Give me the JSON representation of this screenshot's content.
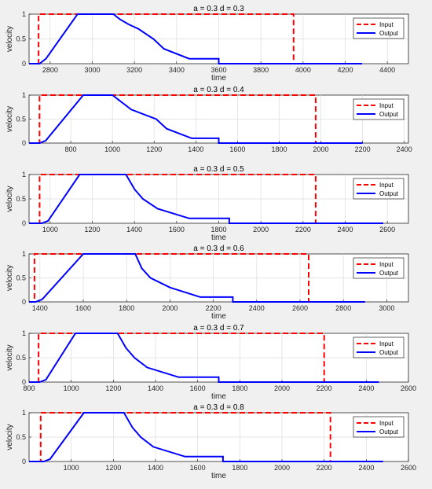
{
  "colors": {
    "input": "#ff0000",
    "output": "#0000ff",
    "background": "#f0f0f0",
    "axes": "#ffffff",
    "grid": "#dcdcdc"
  },
  "chart_data": [
    {
      "type": "line",
      "title": "a = 0.3  d = 0.3",
      "xlabel": "time",
      "ylabel": "velocity",
      "xlim": [
        2700,
        4500
      ],
      "ylim": [
        0,
        1
      ],
      "xticks": [
        2800,
        3000,
        3200,
        3400,
        3600,
        3800,
        4000,
        4200,
        4400
      ],
      "yticks": [
        0,
        0.5,
        1
      ],
      "grid": true,
      "legend_position": "top-right",
      "series": [
        {
          "name": "Input",
          "style": "dashed",
          "x": [
            2700,
            2745,
            2745,
            3955,
            3955,
            4280
          ],
          "y": [
            0,
            0,
            1,
            1,
            0,
            0
          ]
        },
        {
          "name": "Output",
          "style": "solid",
          "x": [
            2700,
            2750,
            2780,
            2930,
            3100,
            3130,
            3130,
            3170,
            3170,
            3220,
            3220,
            3290,
            3290,
            3340,
            3340,
            3460,
            3460,
            3600,
            3600,
            4280
          ],
          "y": [
            0,
            0,
            0.1,
            1,
            1,
            0.9,
            0.9,
            0.8,
            0.8,
            0.7,
            0.7,
            0.5,
            0.5,
            0.3,
            0.3,
            0.1,
            0.1,
            0.1,
            0,
            0
          ]
        }
      ]
    },
    {
      "type": "line",
      "title": "a = 0.3  d = 0.4",
      "xlabel": "",
      "ylabel": "velocity",
      "xlim": [
        600,
        2420
      ],
      "ylim": [
        0,
        1
      ],
      "xticks": [
        800,
        1000,
        1200,
        1400,
        1600,
        1800,
        2000,
        2200,
        2400
      ],
      "yticks": [
        0,
        0.5,
        1
      ],
      "grid": true,
      "legend_position": "top-right",
      "series": [
        {
          "name": "Input",
          "style": "dashed",
          "x": [
            600,
            650,
            650,
            1975,
            1975,
            2200
          ],
          "y": [
            0,
            0,
            1,
            1,
            0,
            0
          ]
        },
        {
          "name": "Output",
          "style": "solid",
          "x": [
            600,
            650,
            680,
            860,
            1000,
            1030,
            1030,
            1090,
            1090,
            1150,
            1150,
            1210,
            1210,
            1260,
            1260,
            1380,
            1380,
            1510,
            1510,
            2200
          ],
          "y": [
            0,
            0,
            0.05,
            1,
            1,
            0.9,
            0.9,
            0.7,
            0.7,
            0.6,
            0.6,
            0.5,
            0.5,
            0.3,
            0.3,
            0.1,
            0.1,
            0.1,
            0,
            0
          ]
        }
      ]
    },
    {
      "type": "line",
      "title": "a = 0.3  d = 0.5",
      "xlabel": "time",
      "ylabel": "velocity",
      "xlim": [
        900,
        2700
      ],
      "ylim": [
        0,
        1
      ],
      "xticks": [
        1000,
        1200,
        1400,
        1600,
        1800,
        2000,
        2200,
        2400,
        2600
      ],
      "yticks": [
        0,
        0.5,
        1
      ],
      "grid": true,
      "legend_position": "top-right",
      "series": [
        {
          "name": "Input",
          "style": "dashed",
          "x": [
            900,
            950,
            950,
            2260,
            2260,
            2580
          ],
          "y": [
            0,
            0,
            1,
            1,
            0,
            0
          ]
        },
        {
          "name": "Output",
          "style": "solid",
          "x": [
            900,
            960,
            990,
            1140,
            1360,
            1400,
            1400,
            1440,
            1440,
            1510,
            1510,
            1660,
            1660,
            1850,
            1850,
            2580
          ],
          "y": [
            0,
            0,
            0.05,
            1,
            1,
            0.7,
            0.7,
            0.5,
            0.5,
            0.3,
            0.3,
            0.1,
            0.1,
            0.1,
            0,
            0
          ]
        }
      ]
    },
    {
      "type": "line",
      "title": "a = 0.3  d = 0.6",
      "xlabel": "time",
      "ylabel": "velocity",
      "xlim": [
        1350,
        3100
      ],
      "ylim": [
        0,
        1
      ],
      "xticks": [
        1400,
        1600,
        1800,
        2000,
        2200,
        2400,
        2600,
        2800,
        3000
      ],
      "yticks": [
        0,
        0.5,
        1
      ],
      "grid": true,
      "legend_position": "top-right",
      "series": [
        {
          "name": "Input",
          "style": "dashed",
          "x": [
            1350,
            1375,
            1375,
            2640,
            2640,
            2900
          ],
          "y": [
            0,
            0,
            1,
            1,
            0,
            0
          ]
        },
        {
          "name": "Output",
          "style": "solid",
          "x": [
            1350,
            1380,
            1410,
            1600,
            1840,
            1870,
            1870,
            1910,
            1910,
            2000,
            2000,
            2140,
            2140,
            2290,
            2290,
            2900
          ],
          "y": [
            0,
            0,
            0.05,
            1,
            1,
            0.7,
            0.7,
            0.5,
            0.5,
            0.3,
            0.3,
            0.1,
            0.1,
            0.1,
            0,
            0
          ]
        }
      ]
    },
    {
      "type": "line",
      "title": "a = 0.3  d = 0.7",
      "xlabel": "time",
      "ylabel": "velocity",
      "xlim": [
        800,
        2600
      ],
      "ylim": [
        0,
        1
      ],
      "xticks": [
        800,
        1000,
        1200,
        1400,
        1600,
        1800,
        2000,
        2200,
        2400,
        2600
      ],
      "yticks": [
        0,
        0.5,
        1
      ],
      "grid": true,
      "legend_position": "top-right",
      "series": [
        {
          "name": "Input",
          "style": "dashed",
          "x": [
            800,
            845,
            845,
            2200,
            2200,
            2460
          ],
          "y": [
            0,
            0,
            1,
            1,
            0,
            0
          ]
        },
        {
          "name": "Output",
          "style": "solid",
          "x": [
            800,
            850,
            880,
            1020,
            1220,
            1260,
            1260,
            1300,
            1300,
            1360,
            1360,
            1510,
            1510,
            1700,
            1700,
            2460
          ],
          "y": [
            0,
            0,
            0.05,
            1,
            1,
            0.7,
            0.7,
            0.5,
            0.5,
            0.3,
            0.3,
            0.1,
            0.1,
            0.1,
            0,
            0
          ]
        }
      ]
    },
    {
      "type": "line",
      "title": "a = 0.3  d = 0.8",
      "xlabel": "time",
      "ylabel": "velocity",
      "xlim": [
        800,
        2600
      ],
      "ylim": [
        0,
        1
      ],
      "xticks": [
        1000,
        1200,
        1400,
        1600,
        1800,
        2000,
        2200,
        2400,
        2600
      ],
      "yticks": [
        0,
        0.5,
        1
      ],
      "grid": true,
      "legend_position": "top-right",
      "series": [
        {
          "name": "Input",
          "style": "dashed",
          "x": [
            800,
            855,
            855,
            2230,
            2230,
            2480
          ],
          "y": [
            0,
            0,
            1,
            1,
            0,
            0
          ]
        },
        {
          "name": "Output",
          "style": "solid",
          "x": [
            800,
            870,
            900,
            1060,
            1250,
            1290,
            1290,
            1330,
            1330,
            1390,
            1390,
            1540,
            1540,
            1720,
            1720,
            2480
          ],
          "y": [
            0,
            0,
            0.05,
            1,
            1,
            0.7,
            0.7,
            0.5,
            0.5,
            0.3,
            0.3,
            0.1,
            0.1,
            0.1,
            0,
            0
          ]
        }
      ]
    }
  ]
}
